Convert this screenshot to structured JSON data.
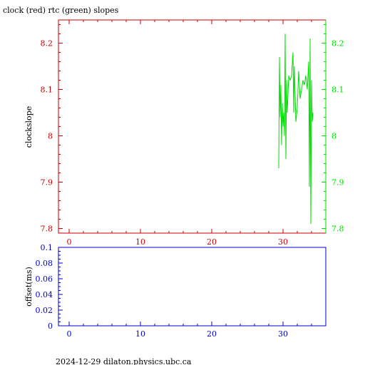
{
  "chart_data": [
    {
      "type": "line",
      "title": "clock (red) rtc (green) slopes",
      "ylabel": "clockslope",
      "xlabel": "",
      "xlim": [
        -1.5,
        36
      ],
      "ylim": [
        7.79,
        8.25
      ],
      "right_ylim": [
        7.79,
        8.25
      ],
      "x_ticks": [
        0,
        10,
        20,
        30
      ],
      "y_ticks": [
        7.8,
        7.9,
        8,
        8.1,
        8.2
      ],
      "y_tick_labels": [
        "7.8",
        "7.9",
        "8",
        "8.1",
        "8.2"
      ],
      "right_y_tick_labels": [
        "7.8",
        "7.9",
        "8",
        "8.1",
        "8.2"
      ],
      "grid": false,
      "colors": {
        "axis_left": "#cc0000",
        "axis_right": "#00dd00",
        "series_rtc": "#00dd00"
      },
      "series": [
        {
          "name": "rtc (green)",
          "color": "#00dd00",
          "x": [
            29.4,
            29.5,
            29.6,
            29.7,
            29.8,
            29.9,
            30.0,
            30.1,
            30.2,
            30.3,
            30.4,
            30.5,
            30.6,
            30.7,
            30.8,
            31.0,
            31.2,
            31.4,
            31.5,
            31.6,
            31.8,
            32.0,
            32.2,
            32.4,
            32.6,
            32.8,
            33.0,
            33.2,
            33.4,
            33.6,
            33.7,
            33.8,
            33.9,
            34.0,
            34.1,
            34.2
          ],
          "y": [
            7.93,
            8.17,
            8.04,
            8.11,
            7.98,
            8.07,
            8.02,
            8.05,
            8.0,
            8.22,
            7.95,
            8.12,
            8.05,
            8.09,
            8.13,
            8.12,
            8.13,
            8.18,
            8.05,
            8.15,
            8.03,
            8.06,
            8.14,
            8.08,
            8.1,
            8.12,
            8.11,
            8.13,
            8.1,
            8.16,
            7.89,
            8.21,
            7.81,
            8.12,
            8.03,
            8.05
          ]
        }
      ]
    },
    {
      "type": "line",
      "title": "",
      "ylabel": "offset(ms)",
      "xlabel": "",
      "xlim": [
        -1.5,
        36
      ],
      "ylim": [
        0,
        0.1
      ],
      "x_ticks": [
        0,
        10,
        20,
        30
      ],
      "y_ticks": [
        0,
        0.02,
        0.04,
        0.06,
        0.08,
        0.1
      ],
      "y_tick_labels": [
        "0",
        "0.02",
        "0.04",
        "0.06",
        "0.08",
        "0.1"
      ],
      "grid": false,
      "colors": {
        "axis": "#0000cc"
      },
      "series": []
    }
  ],
  "footer": "2024-12-29  dilaton.physics.ubc.ca"
}
